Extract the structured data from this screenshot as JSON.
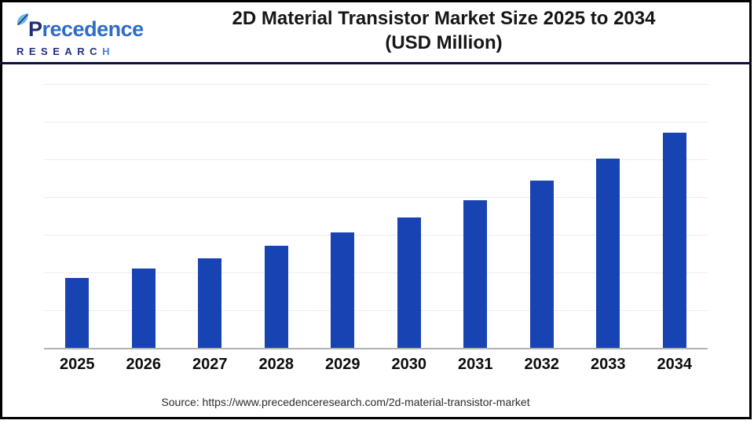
{
  "header": {
    "logo": {
      "precedence_p": "P",
      "precedence_rest": "recedence",
      "research_head": "RESEARC",
      "research_tail": "H"
    },
    "title_line1": "2D Material Transistor Market Size 2025 to 2034",
    "title_line2": "(USD Million)"
  },
  "footer": {
    "source_text": "Source: https://www.precedenceresearch.com/2d-material-transistor-market"
  },
  "colors": {
    "bar": "#1843b2",
    "divider": "#101040",
    "gridline": "#ececec",
    "axis": "#b1b1b4",
    "logo_navy": "#1e2d78",
    "logo_blue": "#2e6cc6",
    "logo_leaf": "#6cb6e6",
    "logo_h": "#4a84d4"
  },
  "chart_data": {
    "type": "bar",
    "title": "2D Material Transistor Market Size 2025 to 2034 (USD Million)",
    "categories": [
      "2025",
      "2026",
      "2027",
      "2028",
      "2029",
      "2030",
      "2031",
      "2032",
      "2033",
      "2034"
    ],
    "values": [
      185,
      210,
      238,
      270,
      306,
      346,
      392,
      444,
      503,
      570
    ],
    "xlabel": "",
    "ylabel": "",
    "ylim": [
      0,
      700
    ],
    "gridline_step": 100,
    "y_tick_labels_visible": false,
    "grid": "horizontal",
    "legend": "none",
    "bar_color": "#1843b2"
  }
}
